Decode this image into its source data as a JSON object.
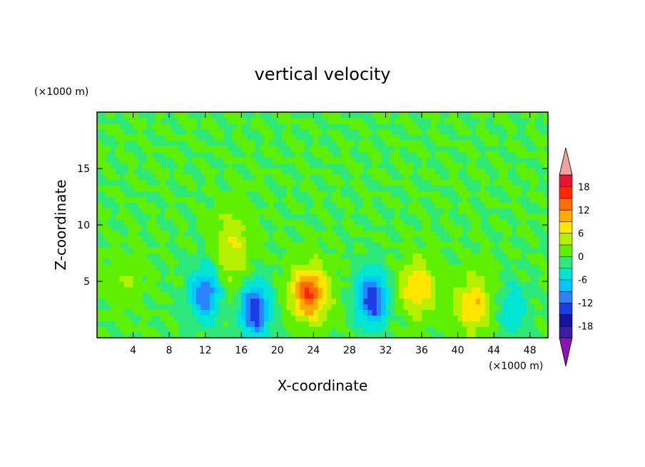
{
  "chart_data": {
    "type": "heatmap",
    "title": "vertical velocity",
    "xlabel": "X-coordinate",
    "ylabel": "Z-coordinate",
    "x_unit": "(×1000 m)",
    "y_unit": "(×1000 m)",
    "xlim": [
      0,
      50
    ],
    "ylim": [
      0,
      20
    ],
    "xticks": [
      4,
      8,
      12,
      16,
      20,
      24,
      28,
      32,
      36,
      40,
      44,
      48
    ],
    "yticks": [
      5,
      10,
      15
    ],
    "colorbar": {
      "levels": [
        -21,
        -18,
        -15,
        -12,
        -9,
        -6,
        -3,
        0,
        3,
        6,
        9,
        12,
        15,
        18,
        21
      ],
      "tick_labels": [
        "18",
        "12",
        "6",
        "0",
        "-6",
        "-12",
        "-18"
      ],
      "tick_values": [
        18,
        12,
        6,
        0,
        -6,
        -12,
        -18
      ],
      "colors": [
        "#8c14b4",
        "#3c1ea0",
        "#1414a0",
        "#1e3ce6",
        "#2d82ff",
        "#00c8ff",
        "#00e6d2",
        "#2fe87a",
        "#5ef000",
        "#b4f000",
        "#ffe600",
        "#ffaa00",
        "#ff6e00",
        "#ff2800",
        "#e61432",
        "#f0a0a0"
      ]
    },
    "features": [
      {
        "kind": "updraft",
        "x": 23.5,
        "z": 4.0,
        "peak": 15
      },
      {
        "kind": "updraft",
        "x": 35.5,
        "z": 4.5,
        "peak": 9
      },
      {
        "kind": "updraft",
        "x": 41.8,
        "z": 3.0,
        "peak": 9
      },
      {
        "kind": "updraft",
        "x": 15.0,
        "z": 8.0,
        "peak": 6
      },
      {
        "kind": "updraft",
        "x": 3.0,
        "z": 5.0,
        "peak": 3
      },
      {
        "kind": "downdraft",
        "x": 12.0,
        "z": 4.0,
        "peak": -12
      },
      {
        "kind": "downdraft",
        "x": 17.5,
        "z": 2.5,
        "peak": -15
      },
      {
        "kind": "downdraft",
        "x": 30.5,
        "z": 3.5,
        "peak": -15
      },
      {
        "kind": "downdraft",
        "x": 46.0,
        "z": 2.5,
        "peak": -6
      }
    ]
  }
}
